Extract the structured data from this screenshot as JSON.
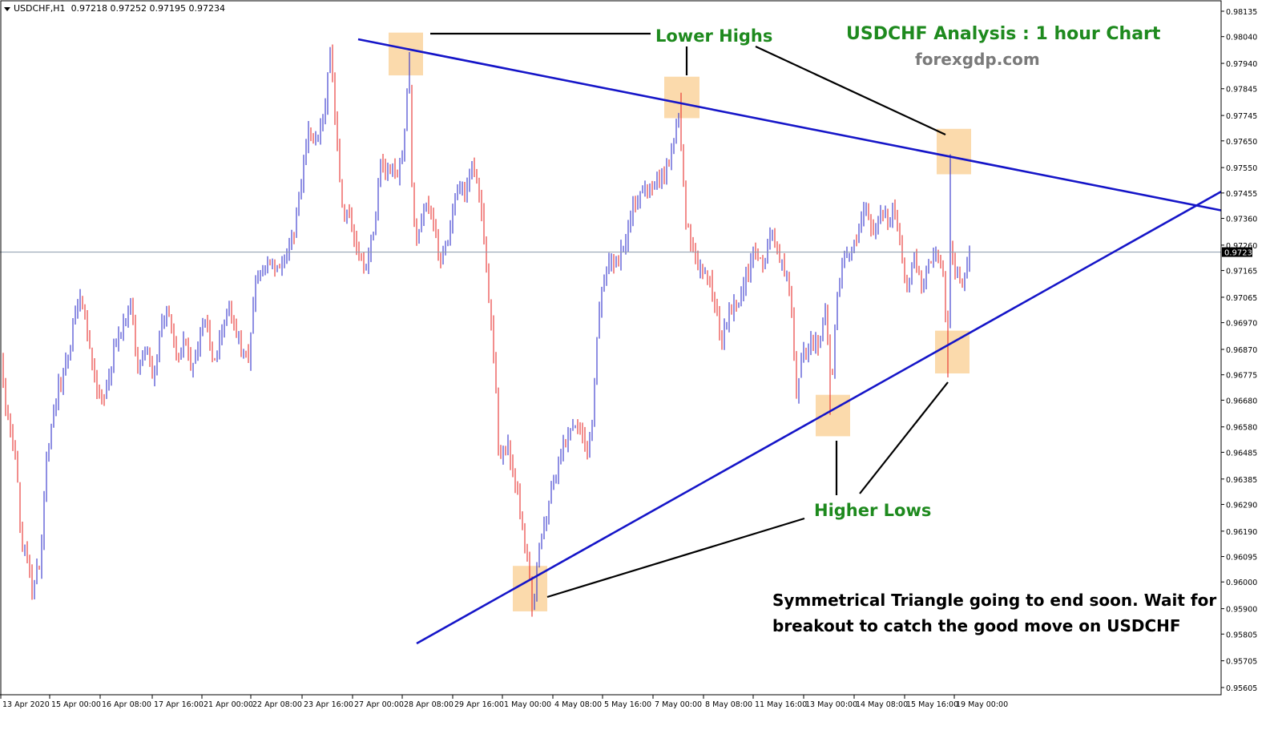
{
  "header": {
    "symbol": "USDCHF,H1",
    "ohlc": "0.97218 0.97252 0.97195 0.97234"
  },
  "colors": {
    "bull": "#3333cc",
    "bear": "#e8302e",
    "trendline": "#1515c8",
    "highlight": "#fbd8a8",
    "annotation_green": "#1e8a1e",
    "price_tag": "#000000"
  },
  "chart_data": {
    "type": "candlestick",
    "title": "USDCHF Analysis : 1 hour Chart",
    "subtitle": "forexgdp.com",
    "ylim": [
      0.95605,
      0.98135
    ],
    "y_ticks": [
      "0.98135",
      "0.98040",
      "0.97940",
      "0.97845",
      "0.97745",
      "0.97650",
      "0.97550",
      "0.97455",
      "0.97360",
      "0.97260",
      "0.97165",
      "0.97065",
      "0.96970",
      "0.96870",
      "0.96775",
      "0.96680",
      "0.96580",
      "0.96485",
      "0.96385",
      "0.96290",
      "0.96190",
      "0.96095",
      "0.96000",
      "0.95900",
      "0.95805",
      "0.95705",
      "0.95605"
    ],
    "x_ticks": [
      "13 Apr 2020",
      "15 Apr 00:00",
      "16 Apr 08:00",
      "17 Apr 16:00",
      "21 Apr 00:00",
      "22 Apr 08:00",
      "23 Apr 16:00",
      "27 Apr 00:00",
      "28 Apr 08:00",
      "29 Apr 16:00",
      "1 May 00:00",
      "4 May 08:00",
      "5 May 16:00",
      "7 May 00:00",
      "8 May 08:00",
      "11 May 16:00",
      "13 May 00:00",
      "14 May 08:00",
      "15 May 16:00",
      "19 May 00:00"
    ],
    "current_price": "0.97234",
    "anchors": [
      [
        0,
        0.9683
      ],
      [
        4,
        0.9672
      ],
      [
        12,
        0.966
      ],
      [
        20,
        0.9647
      ],
      [
        26,
        0.9618
      ],
      [
        34,
        0.9606
      ],
      [
        40,
        0.9598
      ],
      [
        50,
        0.9607
      ],
      [
        58,
        0.9648
      ],
      [
        70,
        0.967
      ],
      [
        80,
        0.9678
      ],
      [
        92,
        0.9696
      ],
      [
        102,
        0.9706
      ],
      [
        112,
        0.9688
      ],
      [
        122,
        0.9669
      ],
      [
        132,
        0.9671
      ],
      [
        142,
        0.9686
      ],
      [
        152,
        0.9695
      ],
      [
        162,
        0.9705
      ],
      [
        172,
        0.9679
      ],
      [
        182,
        0.9688
      ],
      [
        192,
        0.9673
      ],
      [
        200,
        0.9695
      ],
      [
        210,
        0.9702
      ],
      [
        220,
        0.9682
      ],
      [
        230,
        0.969
      ],
      [
        240,
        0.9678
      ],
      [
        248,
        0.969
      ],
      [
        256,
        0.97
      ],
      [
        264,
        0.9685
      ],
      [
        272,
        0.9685
      ],
      [
        282,
        0.9703
      ],
      [
        292,
        0.9695
      ],
      [
        300,
        0.9688
      ],
      [
        310,
        0.9683
      ],
      [
        318,
        0.9708
      ],
      [
        326,
        0.9716
      ],
      [
        336,
        0.972
      ],
      [
        346,
        0.9717
      ],
      [
        356,
        0.9722
      ],
      [
        366,
        0.973
      ],
      [
        374,
        0.9745
      ],
      [
        384,
        0.9768
      ],
      [
        394,
        0.9765
      ],
      [
        404,
        0.9772
      ],
      [
        412,
        0.98
      ],
      [
        418,
        0.9775
      ],
      [
        426,
        0.974
      ],
      [
        436,
        0.9735
      ],
      [
        446,
        0.9722
      ],
      [
        456,
        0.9718
      ],
      [
        466,
        0.973
      ],
      [
        474,
        0.9755
      ],
      [
        484,
        0.9755
      ],
      [
        494,
        0.9752
      ],
      [
        504,
        0.976
      ],
      [
        510,
        0.9798
      ],
      [
        514,
        0.9748
      ],
      [
        520,
        0.9725
      ],
      [
        530,
        0.974
      ],
      [
        540,
        0.9736
      ],
      [
        550,
        0.972
      ],
      [
        560,
        0.9728
      ],
      [
        570,
        0.9748
      ],
      [
        580,
        0.9745
      ],
      [
        590,
        0.9755
      ],
      [
        600,
        0.9742
      ],
      [
        606,
        0.9718
      ],
      [
        612,
        0.97
      ],
      [
        618,
        0.968
      ],
      [
        622,
        0.9648
      ],
      [
        632,
        0.9652
      ],
      [
        642,
        0.964
      ],
      [
        652,
        0.962
      ],
      [
        660,
        0.9602
      ],
      [
        666,
        0.959
      ],
      [
        672,
        0.9612
      ],
      [
        682,
        0.9625
      ],
      [
        692,
        0.964
      ],
      [
        702,
        0.965
      ],
      [
        712,
        0.9655
      ],
      [
        722,
        0.966
      ],
      [
        732,
        0.965
      ],
      [
        740,
        0.966
      ],
      [
        746,
        0.97
      ],
      [
        752,
        0.971
      ],
      [
        760,
        0.9722
      ],
      [
        770,
        0.972
      ],
      [
        780,
        0.9728
      ],
      [
        790,
        0.974
      ],
      [
        800,
        0.9745
      ],
      [
        810,
        0.9748
      ],
      [
        820,
        0.9752
      ],
      [
        830,
        0.9752
      ],
      [
        840,
        0.9765
      ],
      [
        846,
        0.978
      ],
      [
        852,
        0.9755
      ],
      [
        856,
        0.9735
      ],
      [
        862,
        0.9728
      ],
      [
        872,
        0.9715
      ],
      [
        882,
        0.9718
      ],
      [
        892,
        0.9705
      ],
      [
        900,
        0.969
      ],
      [
        910,
        0.97
      ],
      [
        920,
        0.9705
      ],
      [
        932,
        0.9715
      ],
      [
        942,
        0.9725
      ],
      [
        954,
        0.9718
      ],
      [
        964,
        0.9732
      ],
      [
        972,
        0.9722
      ],
      [
        982,
        0.9715
      ],
      [
        988,
        0.9698
      ],
      [
        994,
        0.9672
      ],
      [
        1002,
        0.9685
      ],
      [
        1012,
        0.969
      ],
      [
        1022,
        0.969
      ],
      [
        1030,
        0.97
      ],
      [
        1038,
        0.9675
      ],
      [
        1044,
        0.9705
      ],
      [
        1052,
        0.9722
      ],
      [
        1062,
        0.9725
      ],
      [
        1070,
        0.973
      ],
      [
        1080,
        0.9742
      ],
      [
        1088,
        0.973
      ],
      [
        1098,
        0.974
      ],
      [
        1108,
        0.9735
      ],
      [
        1118,
        0.974
      ],
      [
        1126,
        0.9722
      ],
      [
        1132,
        0.9708
      ],
      [
        1140,
        0.9722
      ],
      [
        1150,
        0.9712
      ],
      [
        1160,
        0.9718
      ],
      [
        1170,
        0.9725
      ],
      [
        1178,
        0.971
      ],
      [
        1182,
        0.969
      ],
      [
        1186,
        0.9728
      ],
      [
        1192,
        0.9715
      ],
      [
        1200,
        0.9712
      ],
      [
        1206,
        0.9718
      ],
      [
        1210,
        0.97234
      ]
    ],
    "events": [
      {
        "x": 510,
        "type": "high",
        "value": 0.97982
      },
      {
        "x": 850,
        "type": "high",
        "value": 0.9783
      },
      {
        "x": 1185,
        "type": "high",
        "value": 0.976
      },
      {
        "x": 665,
        "type": "low",
        "value": 0.9587
      },
      {
        "x": 1037,
        "type": "low",
        "value": 0.96625
      },
      {
        "x": 1183,
        "type": "low",
        "value": 0.96765
      }
    ],
    "trendlines": [
      {
        "name": "resistance",
        "x1": 447,
        "y1": 0.9803,
        "x2": 1524,
        "y2": 0.9739
      },
      {
        "name": "support",
        "x1": 520,
        "y1": 0.9577,
        "x2": 1524,
        "y2": 0.9746
      }
    ],
    "highlights": [
      {
        "x1": 485,
        "x2": 528,
        "low": 0.97895,
        "high": 0.98055
      },
      {
        "x1": 829,
        "x2": 873,
        "low": 0.97735,
        "high": 0.9789
      },
      {
        "x1": 1169,
        "x2": 1212,
        "low": 0.97525,
        "high": 0.97695
      },
      {
        "x1": 1018,
        "x2": 1061,
        "low": 0.96545,
        "high": 0.967
      },
      {
        "x1": 1167,
        "x2": 1210,
        "low": 0.9678,
        "high": 0.9694
      },
      {
        "x1": 640,
        "x2": 683,
        "low": 0.9589,
        "high": 0.9606
      }
    ],
    "annotations": {
      "lower_highs": "Lower Highs",
      "higher_lows": "Higher Lows",
      "note_line1": "Symmetrical Triangle going to end soon. Wait for",
      "note_line2": "breakout to catch the good move on USDCHF"
    }
  }
}
